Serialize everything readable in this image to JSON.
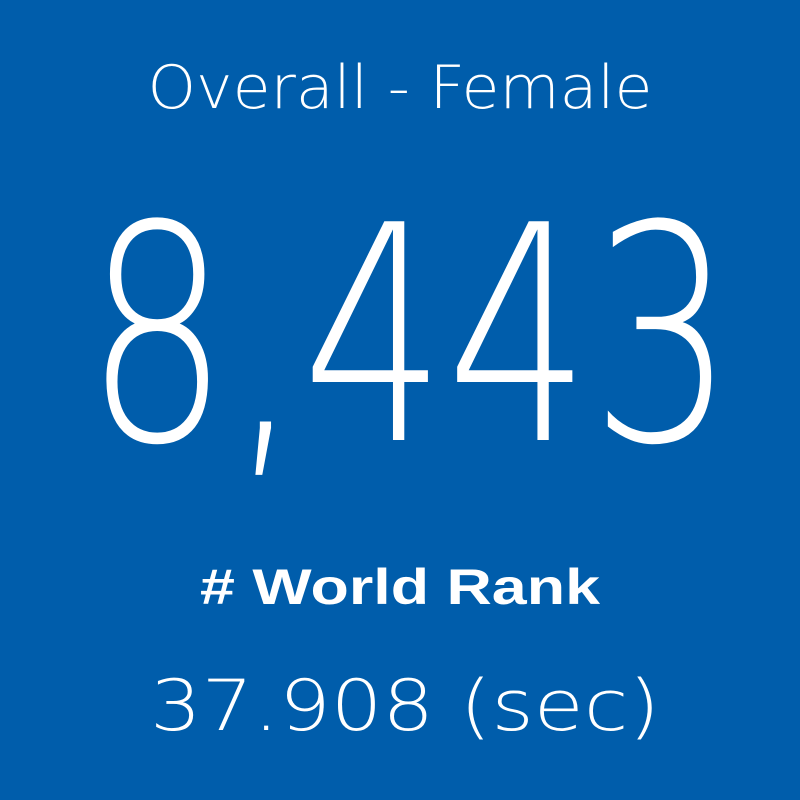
{
  "tile": {
    "title": "Overall - Female",
    "rank": "8,443",
    "rank_label": "# World Rank",
    "time": "37.908 (sec)"
  }
}
